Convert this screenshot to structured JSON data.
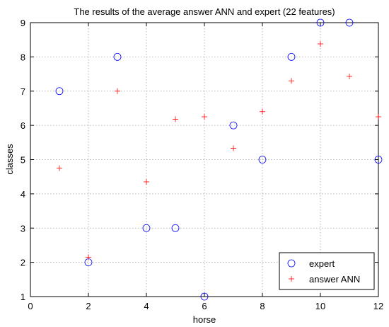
{
  "chart_data": {
    "type": "scatter",
    "title": "The results of the average answer ANN and expert (22 features)",
    "xlabel": "horse",
    "ylabel": "classes",
    "xlim": [
      0,
      12
    ],
    "ylim": [
      1,
      9
    ],
    "xticks": [
      0,
      2,
      4,
      6,
      8,
      10,
      12
    ],
    "yticks": [
      1,
      2,
      3,
      4,
      5,
      6,
      7,
      8,
      9
    ],
    "grid": true,
    "legend_position": "bottom-right",
    "series": [
      {
        "name": "expert",
        "marker": "circle",
        "color": "#0000ff",
        "points": [
          [
            1,
            7
          ],
          [
            2,
            2
          ],
          [
            3,
            8
          ],
          [
            4,
            3
          ],
          [
            5,
            3
          ],
          [
            6,
            1
          ],
          [
            7,
            6
          ],
          [
            8,
            5
          ],
          [
            9,
            8
          ],
          [
            10,
            9
          ],
          [
            11,
            9
          ],
          [
            12,
            5
          ]
        ]
      },
      {
        "name": "answer ANN",
        "marker": "plus",
        "color": "#ff0000",
        "points": [
          [
            1,
            4.75
          ],
          [
            2,
            2.15
          ],
          [
            3,
            7.0
          ],
          [
            4,
            4.35
          ],
          [
            5,
            6.18
          ],
          [
            6,
            6.25
          ],
          [
            7,
            5.33
          ],
          [
            8,
            6.4
          ],
          [
            9,
            7.3
          ],
          [
            10,
            8.38
          ],
          [
            11,
            7.43
          ],
          [
            12,
            6.25
          ]
        ]
      }
    ]
  }
}
